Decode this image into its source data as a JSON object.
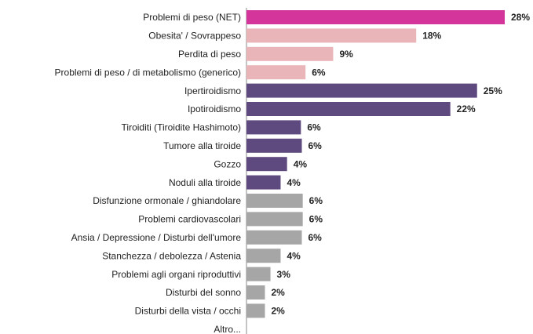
{
  "chart_data": {
    "type": "hbar",
    "categories": [
      "Problemi di peso (NET)",
      "Obesita' / Sovrappeso",
      "Perdita di peso",
      "Problemi di peso / di metabolismo (generico)",
      "Ipertiroidismo",
      "Ipotiroidismo",
      "Tiroiditi (Tiroidite Hashimoto)",
      "Tumore alla tiroide",
      "Gozzo",
      "Noduli alla tiroide",
      "Disfunzione ormonale / ghiandolare",
      "Problemi cardiovascolari",
      "Ansia / Depressione / Disturbi dell'umore",
      "Stanchezza / debolezza / Astenia",
      "Problemi agli organi riproduttivi",
      "Disturbi del sonno",
      "Disturbi della vista / occhi",
      "Altro..."
    ],
    "values": [
      28,
      18.4,
      9.4,
      6.4,
      25,
      22.1,
      5.9,
      6,
      4.4,
      3.7,
      6.1,
      6.1,
      6,
      3.7,
      2.6,
      2,
      2,
      null
    ],
    "value_labels": [
      "28%",
      "18%",
      "9%",
      "6%",
      "25%",
      "22%",
      "6%",
      "6%",
      "4%",
      "4%",
      "6%",
      "6%",
      "6%",
      "4%",
      "3%",
      "2%",
      "2%",
      null
    ],
    "colors": [
      "#d4359b",
      "#e9b5b9",
      "#e9b5b9",
      "#e9b5b9",
      "#5f4a7f",
      "#5f4a7f",
      "#5f4a7f",
      "#5f4a7f",
      "#5f4a7f",
      "#5f4a7f",
      "#a6a6a6",
      "#a6a6a6",
      "#a6a6a6",
      "#a6a6a6",
      "#a6a6a6",
      "#a6a6a6",
      "#a6a6a6",
      null
    ],
    "xlim": [
      0,
      28
    ]
  }
}
